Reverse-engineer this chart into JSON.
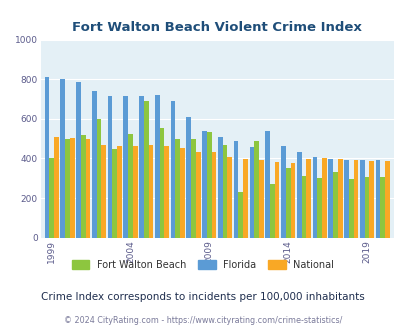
{
  "title": "Fort Walton Beach Violent Crime Index",
  "subtitle": "Crime Index corresponds to incidents per 100,000 inhabitants",
  "footer": "© 2024 CityRating.com - https://www.cityrating.com/crime-statistics/",
  "years": [
    1999,
    2000,
    2001,
    2002,
    2003,
    2004,
    2005,
    2006,
    2007,
    2008,
    2009,
    2010,
    2011,
    2012,
    2013,
    2014,
    2015,
    2016,
    2017,
    2018,
    2019,
    2020
  ],
  "florida": [
    810,
    800,
    785,
    740,
    715,
    715,
    715,
    720,
    690,
    610,
    540,
    510,
    490,
    460,
    540,
    465,
    430,
    405,
    395,
    390,
    390,
    390
  ],
  "fwb": [
    400,
    500,
    520,
    600,
    450,
    525,
    690,
    555,
    500,
    500,
    535,
    470,
    230,
    490,
    270,
    350,
    310,
    300,
    330,
    295,
    305,
    305
  ],
  "national": [
    510,
    505,
    500,
    470,
    465,
    465,
    470,
    465,
    455,
    430,
    430,
    405,
    395,
    390,
    380,
    375,
    395,
    400,
    395,
    390,
    385,
    385
  ],
  "fwb_color": "#8dc63f",
  "florida_color": "#5b9bd5",
  "national_color": "#f9a825",
  "plot_bg": "#e4f0f6",
  "ylim": [
    0,
    1000
  ],
  "yticks": [
    0,
    200,
    400,
    600,
    800,
    1000
  ],
  "tick_label_color": "#5b5b8b",
  "title_color": "#1f4e79",
  "subtitle_color": "#1f2e4e",
  "footer_color": "#7a7a9a",
  "xlabel_years": [
    1999,
    2004,
    2009,
    2014,
    2019
  ]
}
